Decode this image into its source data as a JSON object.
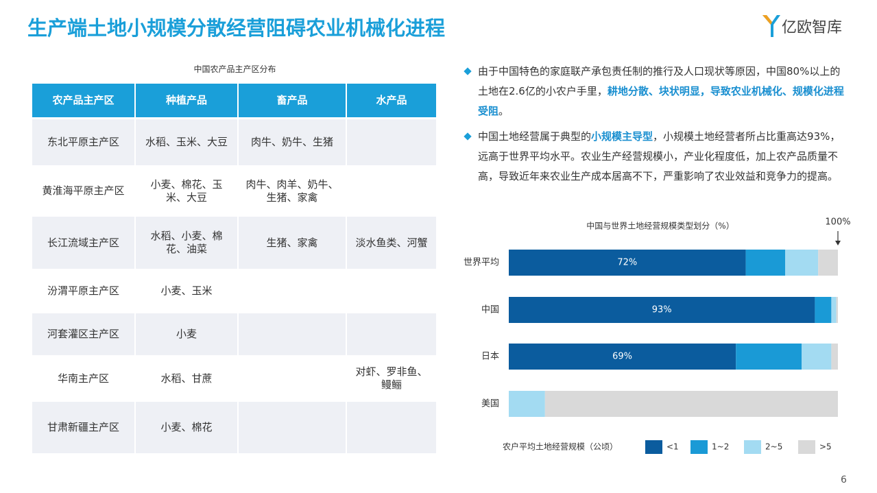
{
  "title": "生产端土地小规模分散经营阻碍农业机械化进程",
  "logo": "亿欧智库",
  "table": {
    "caption": "中国农产品主产区分布",
    "header": [
      "农产品主产区",
      "种植产品",
      "畜产品",
      "水产品"
    ],
    "rows": [
      [
        "东北平原主产区",
        "水稻、玉米、大豆",
        "肉牛、奶牛、生猪",
        null
      ],
      [
        "黄淮海平原主产区",
        "小麦、棉花、玉米、大豆",
        "肉牛、肉羊、奶牛、生猪、家禽",
        null
      ],
      [
        "长江流域主产区",
        "水稻、小麦、棉花、油菜",
        "生猪、家禽",
        "淡水鱼类、河蟹"
      ],
      [
        "汾渭平原主产区",
        "小麦、玉米",
        null,
        null
      ],
      [
        "河套灌区主产区",
        "小麦",
        null,
        null
      ],
      [
        "华南主产区",
        "水稻、甘蔗",
        null,
        "对虾、罗非鱼、鳗鲡"
      ],
      [
        "甘肃新疆主产区",
        "小麦、棉花",
        null,
        null
      ]
    ]
  },
  "bullets": [
    {
      "segments": [
        {
          "text": "由于中国特色的家庭联产承包责任制的推行及人口现状等原因，中国80%以上的土地在2.6亿的小农户手里，",
          "bold": false
        },
        {
          "text": "耕地分散、块状明显，导致农业机械化、规模化进程受阻",
          "bold": true
        },
        {
          "text": "。",
          "bold": false
        }
      ]
    },
    {
      "segments": [
        {
          "text": "中国土地经营属于典型的",
          "bold": false
        },
        {
          "text": "小规模主导型",
          "bold": true
        },
        {
          "text": "，小规模土地经营者所占比重高达93%，远高于世界平均水平。农业生产经营规模小，产业化程度低，加上农产品质量不高，导致近年来农业生产成本居高不下，严重影响了农业效益和竞争力的提高。",
          "bold": false
        }
      ]
    }
  ],
  "chart_data": {
    "type": "stacked_bar_horizontal",
    "title": "中国与世界土地经营规模类型划分（%）",
    "categories": [
      "世界平均",
      "中国",
      "日本",
      "美国"
    ],
    "xlim": [
      0,
      100
    ],
    "legend_title": "农户平均土地经营规模（公顷）",
    "annotation": {
      "text": "100%",
      "x": 100
    },
    "series": [
      {
        "name": "<1",
        "color": "#0b5c9e",
        "values": [
          72,
          93,
          69,
          0
        ],
        "value_labels": [
          "72%",
          "93%",
          "69%",
          null
        ]
      },
      {
        "name": "1~2",
        "color": "#1a9ad6",
        "values": [
          12,
          5,
          20,
          0
        ]
      },
      {
        "name": "2~5",
        "color": "#a3dbf2",
        "values": [
          10,
          1.5,
          9,
          11
        ]
      },
      {
        "name": ">5",
        "color": "#d9d9d9",
        "values": [
          6,
          0.5,
          2,
          89
        ]
      }
    ]
  },
  "page_number": "6"
}
